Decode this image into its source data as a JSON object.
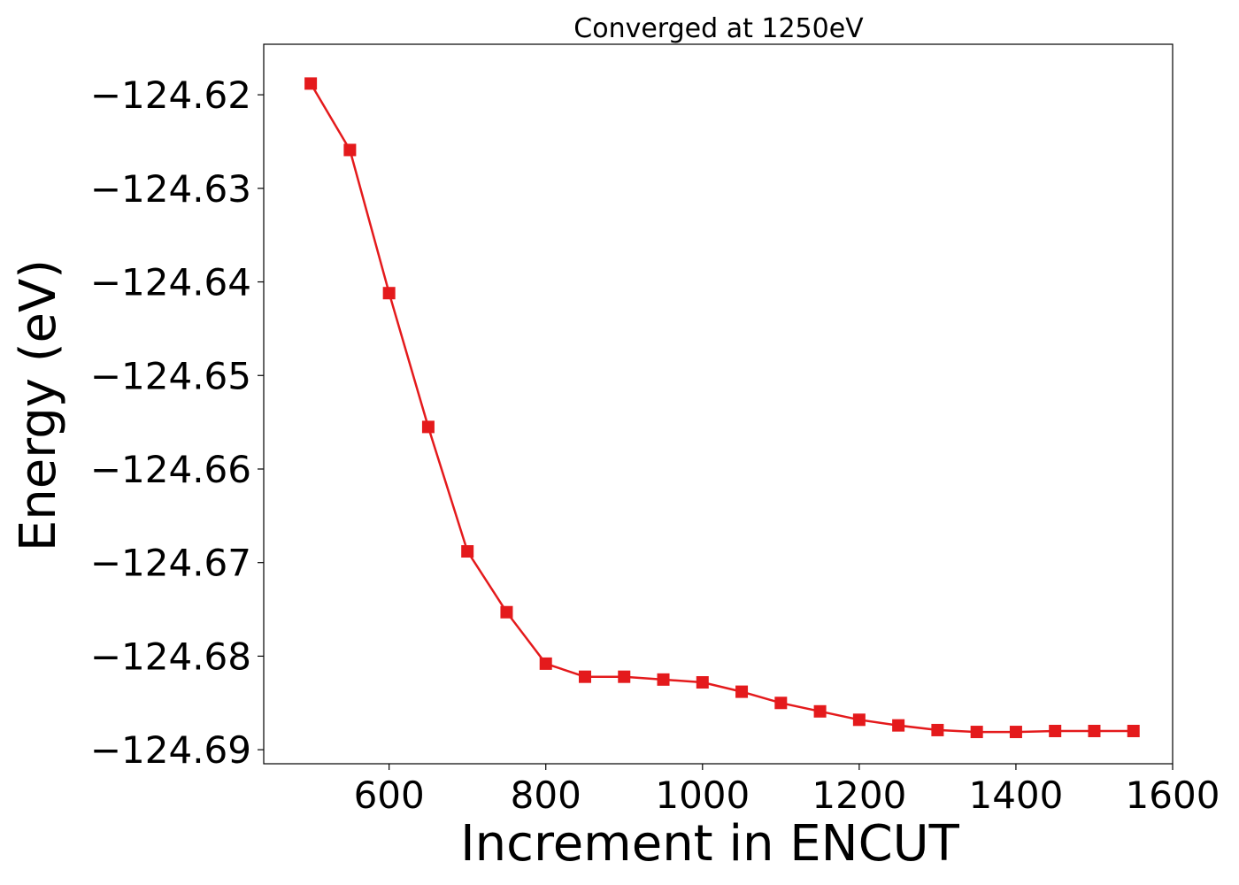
{
  "chart_data": {
    "type": "line",
    "title": "Converged at 1250eV",
    "xlabel": "Increment in ENCUT",
    "ylabel": "Energy (eV)",
    "xlim": [
      440,
      1600
    ],
    "ylim": [
      -124.6915,
      -124.6146
    ],
    "x_ticks": [
      600,
      800,
      1000,
      1200,
      1400,
      1600
    ],
    "x_tick_labels": [
      "600",
      "800",
      "1000",
      "1200",
      "1400",
      "1600"
    ],
    "y_ticks": [
      -124.62,
      -124.63,
      -124.64,
      -124.65,
      -124.66,
      -124.67,
      -124.68,
      -124.69
    ],
    "y_tick_labels": [
      "−124.62",
      "−124.63",
      "−124.64",
      "−124.65",
      "−124.66",
      "−124.67",
      "−124.68",
      "−124.69"
    ],
    "grid": false,
    "series": [
      {
        "color": "#e41a1c",
        "marker": "square",
        "x": [
          500,
          550,
          600,
          650,
          700,
          750,
          800,
          850,
          900,
          950,
          1000,
          1050,
          1100,
          1150,
          1200,
          1250,
          1300,
          1350,
          1400,
          1450,
          1500,
          1550
        ],
        "y": [
          -124.6188,
          -124.6259,
          -124.6412,
          -124.6555,
          -124.6688,
          -124.6753,
          -124.6808,
          -124.6822,
          -124.6822,
          -124.6825,
          -124.6828,
          -124.6838,
          -124.685,
          -124.6859,
          -124.6868,
          -124.6874,
          -124.6879,
          -124.6881,
          -124.6881,
          -124.688,
          -124.688,
          -124.688
        ]
      }
    ]
  }
}
